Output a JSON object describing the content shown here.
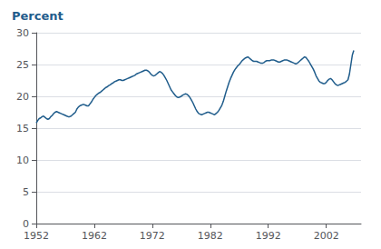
{
  "chart_data": {
    "type": "line",
    "title": "Percent",
    "color": "#1f5c8b",
    "grid": true,
    "xlim": [
      1952,
      2008
    ],
    "ylim": [
      0,
      30
    ],
    "xticks": [
      1952,
      1962,
      1972,
      1982,
      1992,
      2002
    ],
    "yticks": [
      0,
      5,
      10,
      15,
      20,
      25,
      30
    ],
    "x": [
      1952.0,
      1952.25,
      1952.5,
      1952.75,
      1953.0,
      1953.25,
      1953.5,
      1953.75,
      1954.0,
      1954.25,
      1954.5,
      1954.75,
      1955.0,
      1955.25,
      1955.5,
      1955.75,
      1956.0,
      1956.25,
      1956.5,
      1956.75,
      1957.0,
      1957.25,
      1957.5,
      1957.75,
      1958.0,
      1958.25,
      1958.5,
      1958.75,
      1959.0,
      1959.25,
      1959.5,
      1959.75,
      1960.0,
      1960.25,
      1960.5,
      1960.75,
      1961.0,
      1961.25,
      1961.5,
      1961.75,
      1962.0,
      1962.25,
      1962.5,
      1962.75,
      1963.0,
      1963.25,
      1963.5,
      1963.75,
      1964.0,
      1964.25,
      1964.5,
      1964.75,
      1965.0,
      1965.25,
      1965.5,
      1965.75,
      1966.0,
      1966.25,
      1966.5,
      1966.75,
      1967.0,
      1967.25,
      1967.5,
      1967.75,
      1968.0,
      1968.25,
      1968.5,
      1968.75,
      1969.0,
      1969.25,
      1969.5,
      1969.75,
      1970.0,
      1970.25,
      1970.5,
      1970.75,
      1971.0,
      1971.25,
      1971.5,
      1971.75,
      1972.0,
      1972.25,
      1972.5,
      1972.75,
      1973.0,
      1973.25,
      1973.5,
      1973.75,
      1974.0,
      1974.25,
      1974.5,
      1974.75,
      1975.0,
      1975.25,
      1975.5,
      1975.75,
      1976.0,
      1976.25,
      1976.5,
      1976.75,
      1977.0,
      1977.25,
      1977.5,
      1977.75,
      1978.0,
      1978.25,
      1978.5,
      1978.75,
      1979.0,
      1979.25,
      1979.5,
      1979.75,
      1980.0,
      1980.25,
      1980.5,
      1980.75,
      1981.0,
      1981.25,
      1981.5,
      1981.75,
      1982.0,
      1982.25,
      1982.5,
      1982.75,
      1983.0,
      1983.25,
      1983.5,
      1983.75,
      1984.0,
      1984.25,
      1984.5,
      1984.75,
      1985.0,
      1985.25,
      1985.5,
      1985.75,
      1986.0,
      1986.25,
      1986.5,
      1986.75,
      1987.0,
      1987.25,
      1987.5,
      1987.75,
      1988.0,
      1988.25,
      1988.5,
      1988.75,
      1989.0,
      1989.25,
      1989.5,
      1989.75,
      1990.0,
      1990.25,
      1990.5,
      1990.75,
      1991.0,
      1991.25,
      1991.5,
      1991.75,
      1992.0,
      1992.25,
      1992.5,
      1992.75,
      1993.0,
      1993.25,
      1993.5,
      1993.75,
      1994.0,
      1994.25,
      1994.5,
      1994.75,
      1995.0,
      1995.25,
      1995.5,
      1995.75,
      1996.0,
      1996.25,
      1996.5,
      1996.75,
      1997.0,
      1997.25,
      1997.5,
      1997.75,
      1998.0,
      1998.25,
      1998.5,
      1998.75,
      1999.0,
      1999.25,
      1999.5,
      1999.75,
      2000.0,
      2000.25,
      2000.5,
      2000.75,
      2001.0,
      2001.25,
      2001.5,
      2001.75,
      2002.0,
      2002.25,
      2002.5,
      2002.75,
      2003.0,
      2003.25,
      2003.5,
      2003.75,
      2004.0,
      2004.25,
      2004.5,
      2004.75,
      2005.0,
      2005.25,
      2005.5,
      2005.75,
      2006.0,
      2006.25,
      2006.5,
      2006.75
    ],
    "values": [
      15.8,
      16.2,
      16.5,
      16.6,
      16.8,
      16.9,
      16.7,
      16.5,
      16.4,
      16.5,
      16.8,
      17.0,
      17.3,
      17.5,
      17.6,
      17.5,
      17.4,
      17.3,
      17.2,
      17.1,
      17.0,
      16.9,
      16.8,
      16.8,
      16.9,
      17.1,
      17.3,
      17.5,
      18.0,
      18.3,
      18.5,
      18.6,
      18.7,
      18.7,
      18.6,
      18.5,
      18.5,
      18.8,
      19.1,
      19.5,
      19.8,
      20.1,
      20.3,
      20.5,
      20.6,
      20.8,
      21.0,
      21.2,
      21.4,
      21.5,
      21.7,
      21.8,
      22.0,
      22.1,
      22.3,
      22.4,
      22.5,
      22.6,
      22.6,
      22.5,
      22.5,
      22.6,
      22.7,
      22.8,
      22.9,
      23.0,
      23.1,
      23.2,
      23.3,
      23.5,
      23.6,
      23.7,
      23.8,
      23.9,
      24.0,
      24.1,
      24.1,
      24.0,
      23.8,
      23.5,
      23.3,
      23.2,
      23.3,
      23.5,
      23.7,
      23.9,
      23.8,
      23.6,
      23.3,
      22.9,
      22.5,
      22.0,
      21.5,
      21.0,
      20.7,
      20.4,
      20.1,
      19.9,
      19.8,
      19.9,
      20.0,
      20.2,
      20.3,
      20.4,
      20.3,
      20.1,
      19.8,
      19.4,
      19.0,
      18.5,
      18.0,
      17.6,
      17.3,
      17.2,
      17.1,
      17.2,
      17.3,
      17.4,
      17.5,
      17.5,
      17.4,
      17.3,
      17.2,
      17.1,
      17.3,
      17.5,
      17.8,
      18.2,
      18.6,
      19.2,
      20.0,
      20.8,
      21.5,
      22.2,
      22.8,
      23.3,
      23.8,
      24.2,
      24.5,
      24.8,
      25.0,
      25.3,
      25.6,
      25.8,
      26.0,
      26.1,
      26.2,
      26.0,
      25.8,
      25.6,
      25.5,
      25.5,
      25.5,
      25.4,
      25.3,
      25.2,
      25.2,
      25.3,
      25.5,
      25.6,
      25.6,
      25.6,
      25.7,
      25.7,
      25.7,
      25.6,
      25.5,
      25.4,
      25.4,
      25.5,
      25.6,
      25.7,
      25.7,
      25.7,
      25.6,
      25.5,
      25.4,
      25.3,
      25.2,
      25.1,
      25.2,
      25.4,
      25.6,
      25.8,
      26.0,
      26.2,
      26.1,
      25.8,
      25.5,
      25.1,
      24.7,
      24.3,
      23.8,
      23.2,
      22.8,
      22.4,
      22.2,
      22.1,
      22.0,
      22.0,
      22.2,
      22.5,
      22.7,
      22.8,
      22.6,
      22.3,
      22.0,
      21.8,
      21.7,
      21.8,
      21.9,
      22.0,
      22.1,
      22.2,
      22.4,
      22.6,
      23.5,
      25.0,
      26.5,
      27.2
    ]
  }
}
